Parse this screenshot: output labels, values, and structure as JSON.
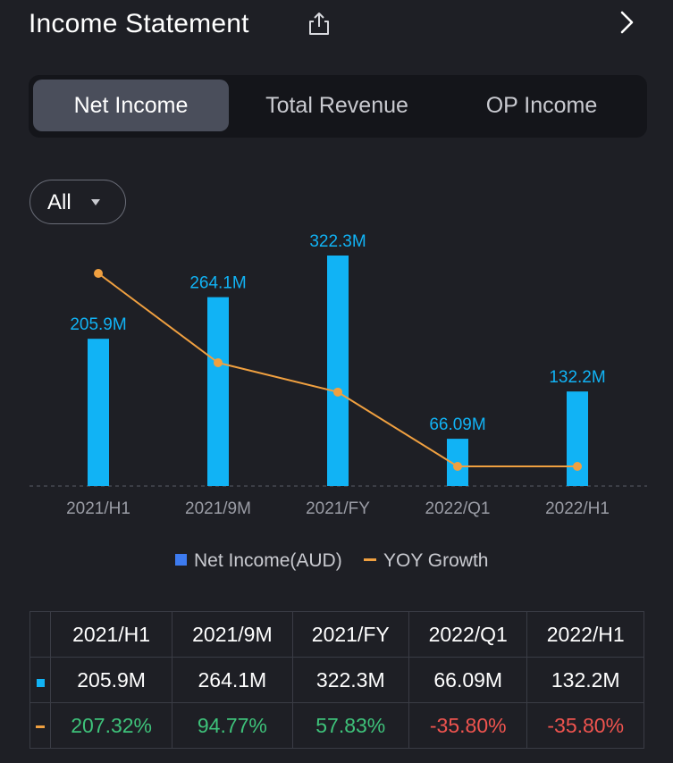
{
  "header": {
    "title": "Income Statement",
    "share_icon": "share-icon",
    "next_icon": "chevron-right-icon"
  },
  "tabs": [
    {
      "label": "Net Income",
      "active": true
    },
    {
      "label": "Total Revenue",
      "active": false
    },
    {
      "label": "OP Income",
      "active": false
    }
  ],
  "filter": {
    "label": "All",
    "icon": "caret-down-icon"
  },
  "colors": {
    "bar": "#11b3f5",
    "line": "#f0a040",
    "legend_bar": "#3d7bf0",
    "positive": "#3ec27a",
    "negative": "#f0544f"
  },
  "chart_data": {
    "type": "bar",
    "categories": [
      "2021/H1",
      "2021/9M",
      "2021/FY",
      "2022/Q1",
      "2022/H1"
    ],
    "series": [
      {
        "name": "Net Income(AUD)",
        "type": "bar",
        "values": [
          205.9,
          264.1,
          322.3,
          66.09,
          132.2
        ],
        "labels": [
          "205.9M",
          "264.1M",
          "322.3M",
          "66.09M",
          "132.2M"
        ]
      },
      {
        "name": "YOY Growth",
        "type": "line",
        "values": [
          207.32,
          94.77,
          57.83,
          -35.8,
          -35.8
        ],
        "labels": [
          "207.32%",
          "94.77%",
          "57.83%",
          "-35.80%",
          "-35.80%"
        ]
      }
    ],
    "title": "",
    "xlabel": "",
    "ylabel": "",
    "grid": false,
    "legend": "bottom"
  },
  "legend": {
    "bar_label": "Net Income(AUD)",
    "line_label": "YOY Growth"
  }
}
